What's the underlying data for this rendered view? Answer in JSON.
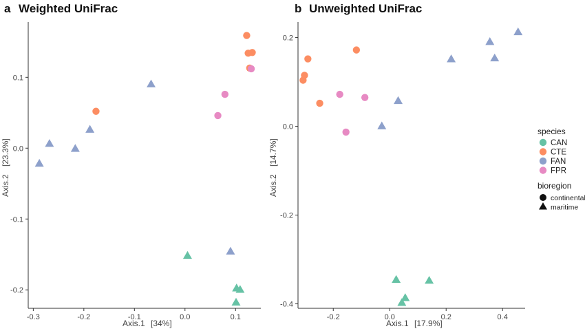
{
  "chart_data": [
    {
      "type": "scatter",
      "panel_letter": "a",
      "title": "Weighted UniFrac",
      "xlabel_name": "Axis.1",
      "xlabel_pct": "[34%]",
      "ylabel_name": "Axis.2",
      "ylabel_pct": "[23.3%]",
      "xlim": [
        -0.31,
        0.15
      ],
      "ylim": [
        -0.226,
        0.178
      ],
      "xticks": [
        -0.3,
        -0.2,
        -0.1,
        0.0,
        0.1
      ],
      "xtick_labels": [
        "-0.3",
        "-0.2",
        "-0.1",
        "0.0",
        "0.1"
      ],
      "yticks": [
        -0.2,
        -0.1,
        0.0,
        0.1
      ],
      "ytick_labels": [
        "-0.2",
        "-0.1",
        "0.0",
        "0.1"
      ],
      "points": [
        {
          "x": 0.122,
          "y": 0.159,
          "species": "CTE",
          "bioregion": "continental"
        },
        {
          "x": 0.125,
          "y": 0.134,
          "species": "CTE",
          "bioregion": "continental"
        },
        {
          "x": 0.133,
          "y": 0.135,
          "species": "CTE",
          "bioregion": "continental"
        },
        {
          "x": 0.128,
          "y": 0.113,
          "species": "CTE",
          "bioregion": "continental"
        },
        {
          "x": -0.176,
          "y": 0.052,
          "species": "CTE",
          "bioregion": "continental"
        },
        {
          "x": 0.131,
          "y": 0.112,
          "species": "FPR",
          "bioregion": "continental"
        },
        {
          "x": 0.079,
          "y": 0.076,
          "species": "FPR",
          "bioregion": "continental"
        },
        {
          "x": 0.065,
          "y": 0.046,
          "species": "FPR",
          "bioregion": "continental"
        },
        {
          "x": -0.067,
          "y": 0.09,
          "species": "FAN",
          "bioregion": "maritime"
        },
        {
          "x": -0.188,
          "y": 0.026,
          "species": "FAN",
          "bioregion": "maritime"
        },
        {
          "x": -0.268,
          "y": 0.006,
          "species": "FAN",
          "bioregion": "maritime"
        },
        {
          "x": -0.217,
          "y": -0.001,
          "species": "FAN",
          "bioregion": "maritime"
        },
        {
          "x": -0.288,
          "y": -0.022,
          "species": "FAN",
          "bioregion": "maritime"
        },
        {
          "x": 0.09,
          "y": -0.146,
          "species": "FAN",
          "bioregion": "maritime"
        },
        {
          "x": 0.005,
          "y": -0.152,
          "species": "CAN",
          "bioregion": "maritime"
        },
        {
          "x": 0.102,
          "y": -0.198,
          "species": "CAN",
          "bioregion": "maritime"
        },
        {
          "x": 0.109,
          "y": -0.2,
          "species": "CAN",
          "bioregion": "maritime"
        },
        {
          "x": 0.101,
          "y": -0.218,
          "species": "CAN",
          "bioregion": "maritime"
        }
      ]
    },
    {
      "type": "scatter",
      "panel_letter": "b",
      "title": "Unweighted UniFrac",
      "xlabel_name": "Axis.1",
      "xlabel_pct": "[17.9%]",
      "ylabel_name": "Axis.2",
      "ylabel_pct": "[14.7%]",
      "xlim": [
        -0.325,
        0.48
      ],
      "ylim": [
        -0.41,
        0.235
      ],
      "xticks": [
        -0.2,
        0.0,
        0.2,
        0.4
      ],
      "xtick_labels": [
        "-0.2",
        "0.0",
        "0.2",
        "0.4"
      ],
      "yticks": [
        -0.4,
        -0.2,
        0.0,
        0.2
      ],
      "ytick_labels": [
        "-0.4",
        "-0.2",
        "0.0",
        "0.2"
      ],
      "points": [
        {
          "x": -0.29,
          "y": 0.152,
          "species": "CTE",
          "bioregion": "continental"
        },
        {
          "x": -0.118,
          "y": 0.172,
          "species": "CTE",
          "bioregion": "continental"
        },
        {
          "x": -0.302,
          "y": 0.115,
          "species": "CTE",
          "bioregion": "continental"
        },
        {
          "x": -0.307,
          "y": 0.104,
          "species": "CTE",
          "bioregion": "continental"
        },
        {
          "x": -0.248,
          "y": 0.052,
          "species": "CTE",
          "bioregion": "continental"
        },
        {
          "x": -0.177,
          "y": 0.072,
          "species": "FPR",
          "bioregion": "continental"
        },
        {
          "x": -0.088,
          "y": 0.065,
          "species": "FPR",
          "bioregion": "continental"
        },
        {
          "x": -0.155,
          "y": -0.013,
          "species": "FPR",
          "bioregion": "continental"
        },
        {
          "x": 0.03,
          "y": 0.057,
          "species": "FAN",
          "bioregion": "maritime"
        },
        {
          "x": -0.028,
          "y": 0.0,
          "species": "FAN",
          "bioregion": "maritime"
        },
        {
          "x": 0.218,
          "y": 0.151,
          "species": "FAN",
          "bioregion": "maritime"
        },
        {
          "x": 0.355,
          "y": 0.19,
          "species": "FAN",
          "bioregion": "maritime"
        },
        {
          "x": 0.372,
          "y": 0.153,
          "species": "FAN",
          "bioregion": "maritime"
        },
        {
          "x": 0.455,
          "y": 0.212,
          "species": "FAN",
          "bioregion": "maritime"
        },
        {
          "x": 0.023,
          "y": -0.346,
          "species": "CAN",
          "bioregion": "maritime"
        },
        {
          "x": 0.14,
          "y": -0.348,
          "species": "CAN",
          "bioregion": "maritime"
        },
        {
          "x": 0.055,
          "y": -0.387,
          "species": "CAN",
          "bioregion": "maritime"
        },
        {
          "x": 0.043,
          "y": -0.398,
          "species": "CAN",
          "bioregion": "maritime"
        }
      ]
    }
  ],
  "legend": {
    "species_title": "species",
    "species": [
      {
        "name": "CAN",
        "color": "#66c2a5"
      },
      {
        "name": "CTE",
        "color": "#fc8d62"
      },
      {
        "name": "FAN",
        "color": "#8da0cb"
      },
      {
        "name": "FPR",
        "color": "#e78ac3"
      }
    ],
    "bioregion_title": "bioregion",
    "bioregion": [
      {
        "name": "continental",
        "shape": "circle"
      },
      {
        "name": "maritime",
        "shape": "triangle"
      }
    ]
  }
}
